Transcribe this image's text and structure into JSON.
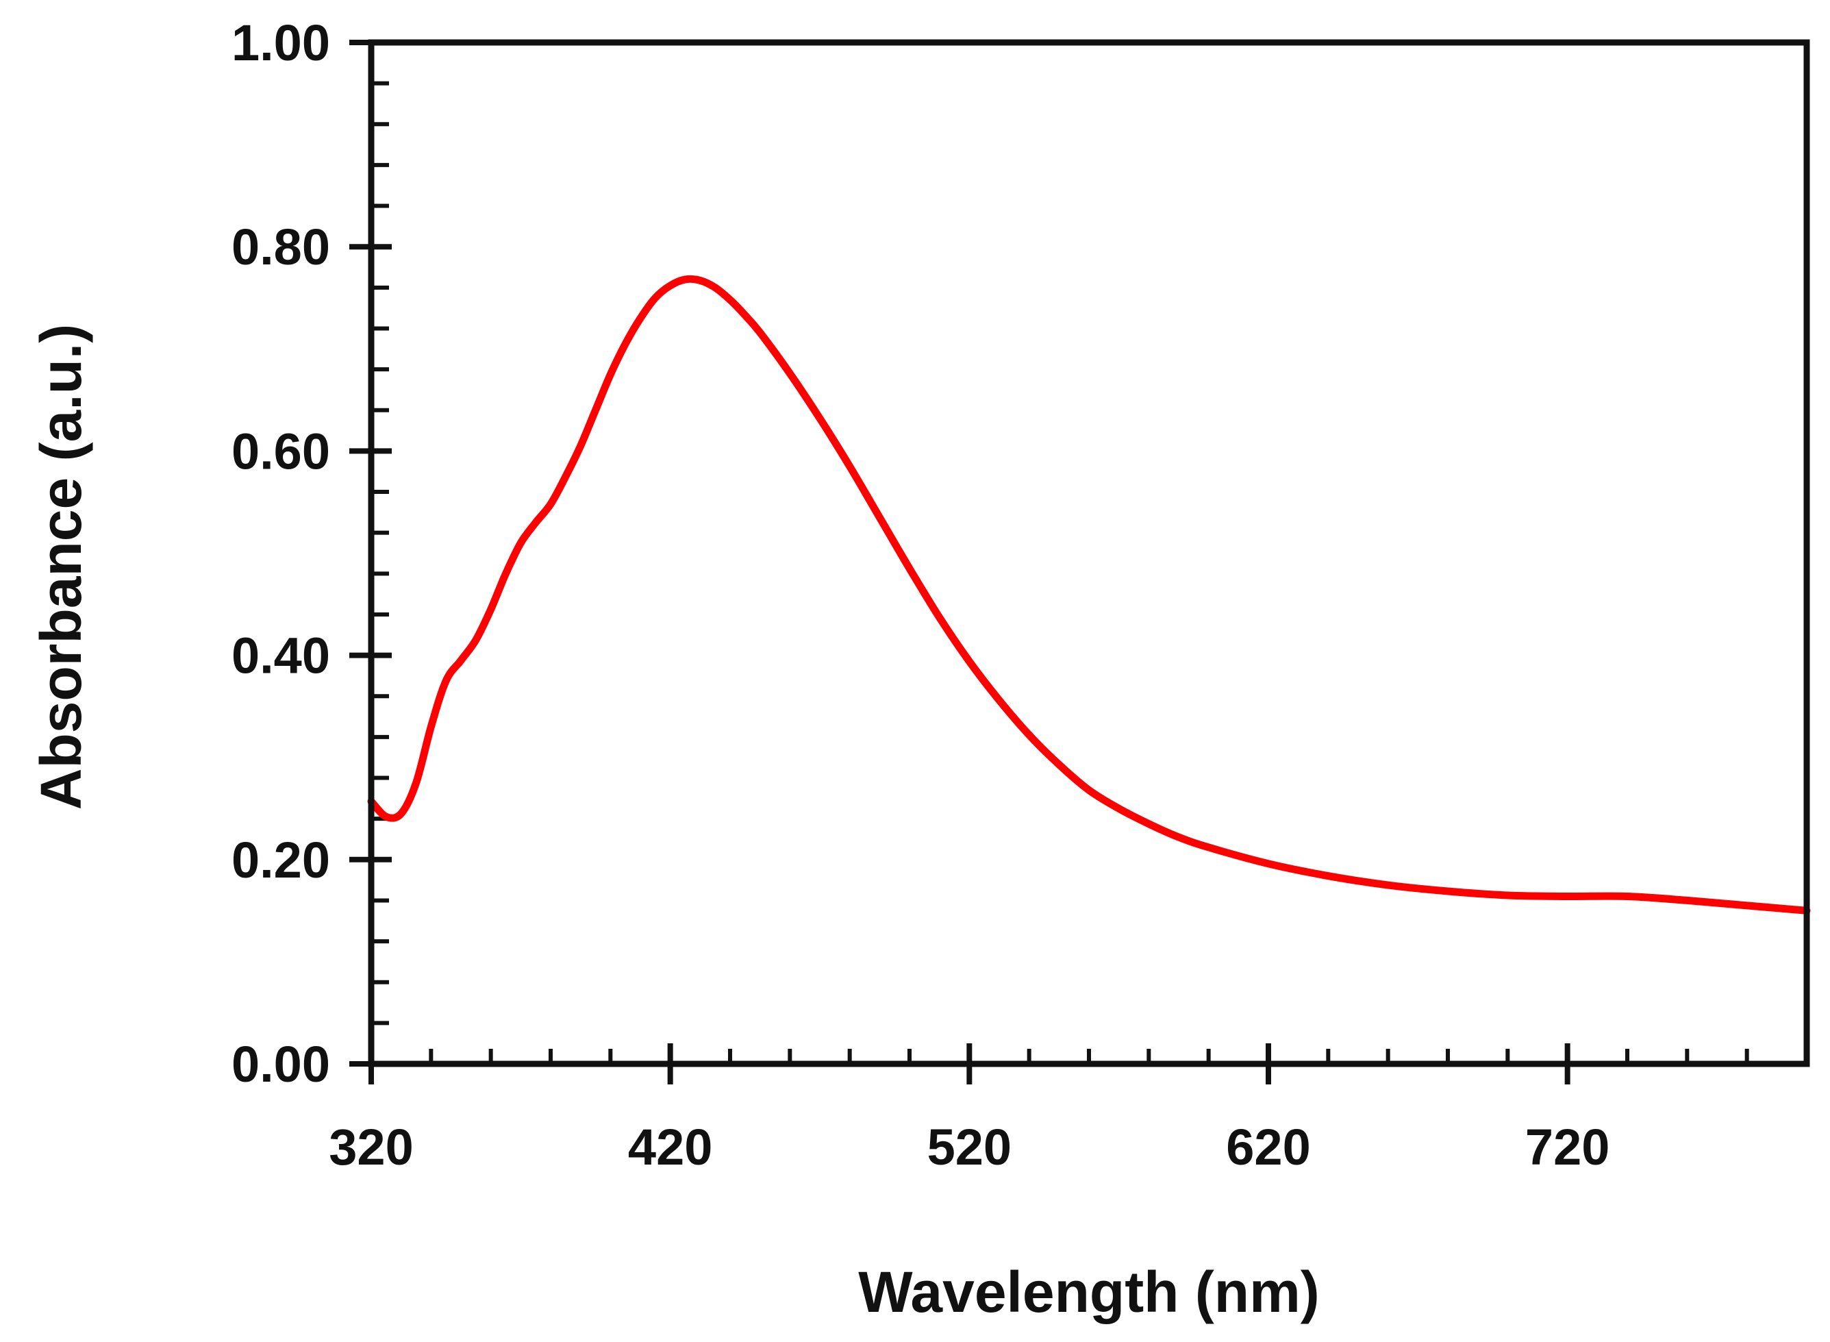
{
  "chart_data": {
    "type": "line",
    "title": "",
    "xlabel": "Wavelength (nm)",
    "ylabel": "Absorbance (a.u.)",
    "xlim": [
      320,
      800
    ],
    "ylim": [
      0,
      1.0
    ],
    "x_ticks": [
      320,
      420,
      520,
      620,
      720
    ],
    "x_tick_labels": [
      "320",
      "420",
      "520",
      "620",
      "720"
    ],
    "y_ticks": [
      0,
      0.2,
      0.4,
      0.6,
      0.8,
      1.0
    ],
    "y_tick_labels": [
      "0.00",
      "0.20",
      "0.40",
      "0.60",
      "0.80",
      "1.00"
    ],
    "grid": false,
    "legend": "none",
    "series": [
      {
        "name": "Absorbance",
        "color": "#ff0000",
        "x": [
          320,
          325,
          330,
          335,
          340,
          345,
          350,
          355,
          360,
          365,
          370,
          375,
          380,
          385,
          390,
          395,
          400,
          405,
          410,
          415,
          420,
          425,
          430,
          435,
          440,
          445,
          450,
          460,
          470,
          480,
          490,
          500,
          510,
          520,
          530,
          540,
          550,
          560,
          570,
          580,
          590,
          600,
          620,
          640,
          660,
          680,
          700,
          720,
          740,
          760,
          780,
          800
        ],
        "y": [
          0.257,
          0.242,
          0.245,
          0.275,
          0.33,
          0.375,
          0.395,
          0.415,
          0.445,
          0.48,
          0.51,
          0.53,
          0.548,
          0.575,
          0.605,
          0.64,
          0.675,
          0.705,
          0.73,
          0.75,
          0.762,
          0.768,
          0.767,
          0.76,
          0.748,
          0.733,
          0.716,
          0.676,
          0.632,
          0.585,
          0.535,
          0.485,
          0.437,
          0.394,
          0.356,
          0.322,
          0.293,
          0.268,
          0.25,
          0.235,
          0.222,
          0.212,
          0.196,
          0.184,
          0.175,
          0.169,
          0.165,
          0.164,
          0.164,
          0.16,
          0.155,
          0.15
        ]
      }
    ]
  }
}
